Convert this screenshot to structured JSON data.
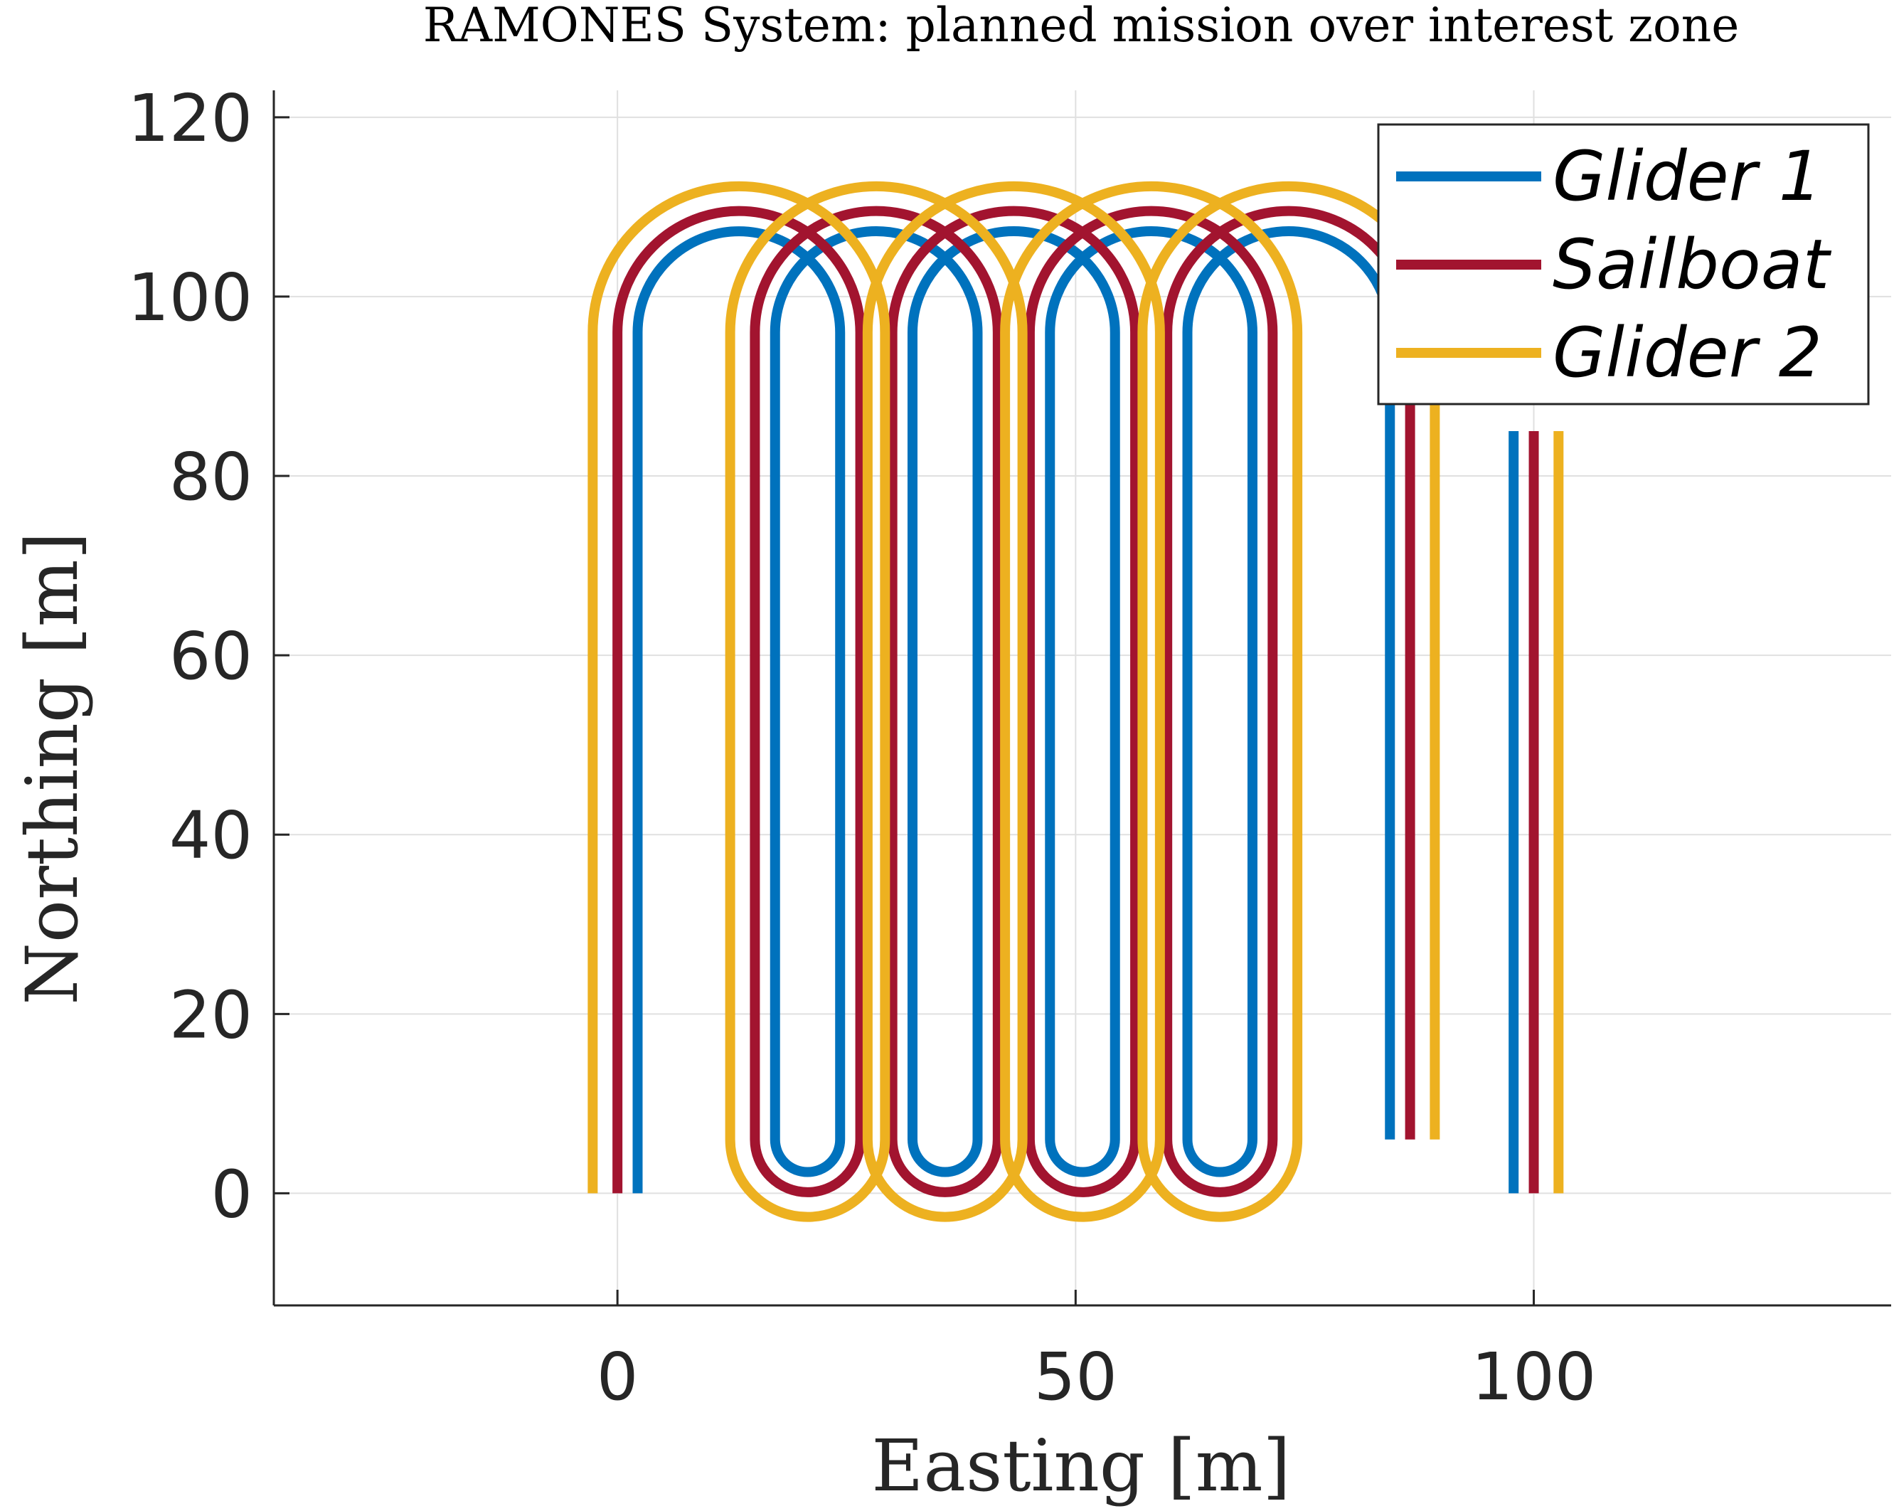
{
  "chart_data": {
    "type": "line",
    "title": "RAMONES System: planned mission over interest zone",
    "xlabel": "Easting [m]",
    "ylabel": "Northing [m]",
    "xlim": [
      -37.5,
      139
    ],
    "ylim": [
      -12.5,
      123
    ],
    "xticks": [
      0,
      50,
      100
    ],
    "xtick_labels": [
      "0",
      "50",
      "100"
    ],
    "yticks": [
      0,
      20,
      40,
      60,
      80,
      100,
      120
    ],
    "ytick_labels": [
      "0",
      "20",
      "40",
      "60",
      "80",
      "100",
      "120"
    ],
    "grid": true,
    "legend_position": "top-right",
    "pattern": {
      "description_note": "lawnmower survey track; columns connected by semicircular turns",
      "legs_x_center": [
        0,
        15,
        30,
        45,
        60,
        75,
        90,
        100
      ],
      "bottom_y": 0,
      "top_y": 96,
      "first_leg_start_y": 0,
      "last_leg_end_y": 85
    },
    "series": [
      {
        "name": "Glider 1",
        "color": "#0072BD",
        "offset": 2.2
      },
      {
        "name": "Sailboat",
        "color": "#A2142F",
        "offset": 0
      },
      {
        "name": "Glider 2",
        "color": "#EDB120",
        "offset": -2.7
      }
    ]
  }
}
